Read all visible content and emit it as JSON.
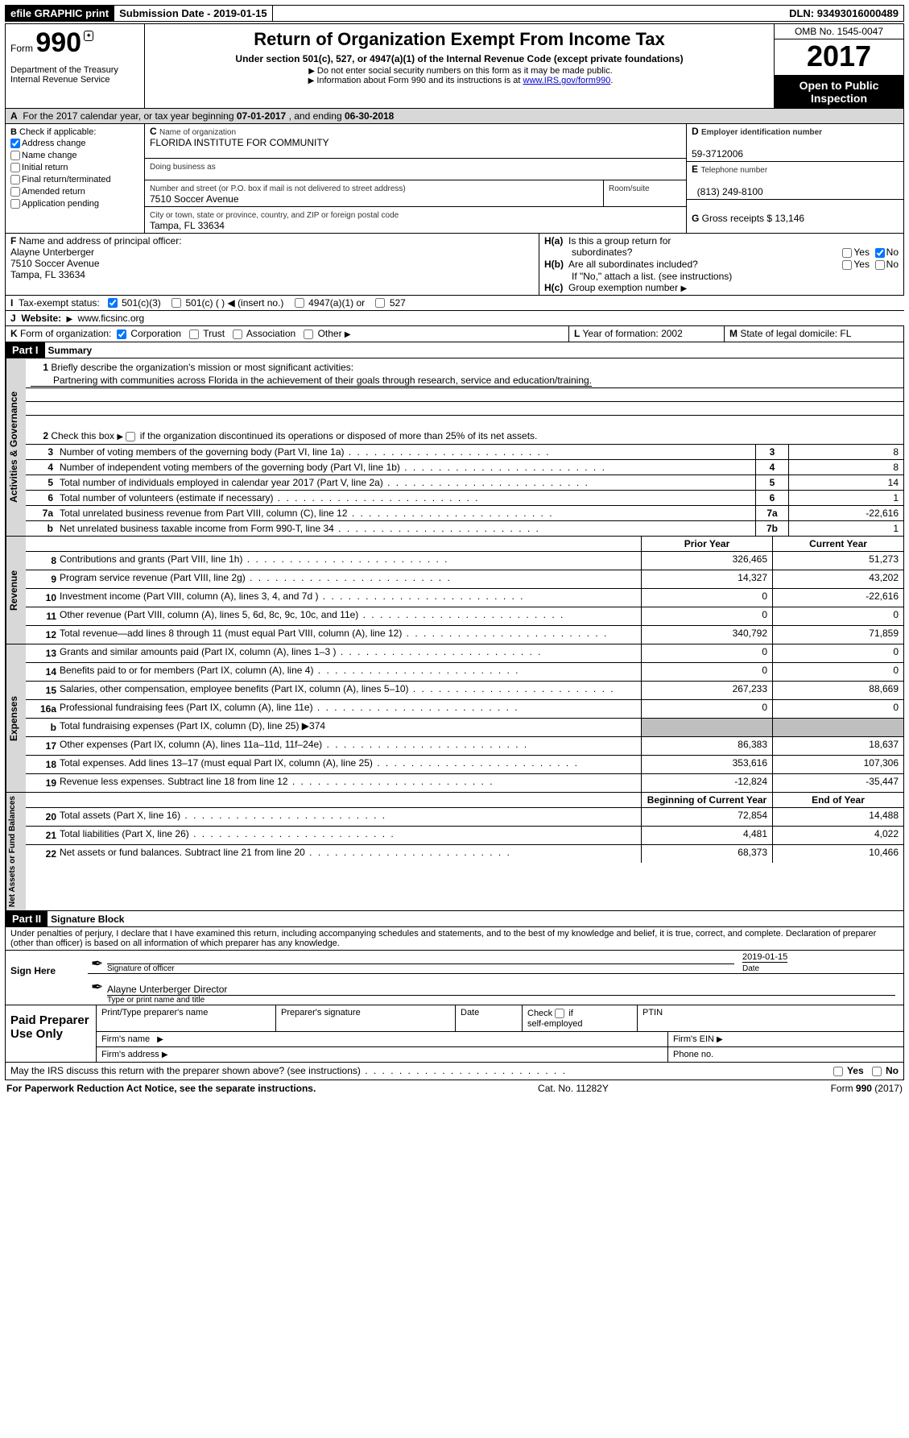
{
  "topbar": {
    "efile": "efile GRAPHIC print",
    "submission_label": "Submission Date - ",
    "submission_date": "2019-01-15",
    "dln_label": "DLN: ",
    "dln": "93493016000489"
  },
  "header": {
    "form_word": "Form",
    "form_number": "990",
    "dept1": "Department of the Treasury",
    "dept2": "Internal Revenue Service",
    "title": "Return of Organization Exempt From Income Tax",
    "sub": "Under section 501(c), 527, or 4947(a)(1) of the Internal Revenue Code (except private foundations)",
    "note1": "Do not enter social security numbers on this form as it may be made public.",
    "note2_pre": "Information about Form 990 and its instructions is at ",
    "note2_link": "www.IRS.gov/form990",
    "omb": "OMB No. 1545-0047",
    "year": "2017",
    "open1": "Open to Public",
    "open2": "Inspection"
  },
  "A": {
    "text_pre": "For the 2017 calendar year, or tax year beginning ",
    "begin": "07-01-2017",
    "mid": " , and ending ",
    "end": "06-30-2018"
  },
  "B": {
    "label": "Check if applicable:",
    "items": [
      {
        "label": "Address change",
        "checked": true
      },
      {
        "label": "Name change",
        "checked": false
      },
      {
        "label": "Initial return",
        "checked": false
      },
      {
        "label": "Final return/terminated",
        "checked": false
      },
      {
        "label": "Amended return",
        "checked": false
      },
      {
        "label": "Application pending",
        "checked": false
      }
    ]
  },
  "C": {
    "name_label": "Name of organization",
    "name": "FLORIDA INSTITUTE FOR COMMUNITY",
    "dba_label": "Doing business as",
    "dba": "",
    "street_label": "Number and street (or P.O. box if mail is not delivered to street address)",
    "room_label": "Room/suite",
    "street": "7510 Soccer Avenue",
    "city_label": "City or town, state or province, country, and ZIP or foreign postal code",
    "city": "Tampa, FL  33634"
  },
  "D": {
    "label": "Employer identification number",
    "value": "59-3712006"
  },
  "E": {
    "label": "Telephone number",
    "value": "(813) 249-8100"
  },
  "G": {
    "label": "Gross receipts $ ",
    "value": "13,146"
  },
  "F": {
    "label": "Name and address of principal officer:",
    "name": "Alayne Unterberger",
    "street": "7510 Soccer Avenue",
    "city": "Tampa, FL  33634"
  },
  "H": {
    "a_label": "Is this a group return for",
    "a_label2": "subordinates?",
    "a_yes": "Yes",
    "a_no": "No",
    "a_checked": "no",
    "b_label": "Are all subordinates included?",
    "b_yes": "Yes",
    "b_no": "No",
    "b_note": "If \"No,\" attach a list. (see instructions)",
    "c_label": "Group exemption number"
  },
  "I": {
    "label": "Tax-exempt status:",
    "o1": "501(c)(3)",
    "o1_checked": true,
    "o2": "501(c) (  )",
    "o2_hint": "(insert no.)",
    "o3": "4947(a)(1) or",
    "o4": "527"
  },
  "J": {
    "label": "Website:",
    "value": "www.ficsinc.org"
  },
  "K": {
    "label": "Form of organization:",
    "o1": "Corporation",
    "o1_checked": true,
    "o2": "Trust",
    "o3": "Association",
    "o4": "Other"
  },
  "L": {
    "label": "Year of formation: ",
    "value": "2002"
  },
  "M": {
    "label": "State of legal domicile: ",
    "value": "FL"
  },
  "part1": {
    "bar": "Part I",
    "title": "Summary"
  },
  "vtabs": {
    "gov": "Activities & Governance",
    "rev": "Revenue",
    "exp": "Expenses",
    "net": "Net Assets or\nFund Balances"
  },
  "gov_lines": {
    "l1_label": "Briefly describe the organization's mission or most significant activities:",
    "mission": "Partnering with communities across Florida in the achievement of their goals through research, service and education/training.",
    "l2": "Check this box ▶  if the organization discontinued its operations or disposed of more than 25% of its net assets.",
    "rows": [
      {
        "n": "3",
        "d": "Number of voting members of the governing body (Part VI, line 1a)",
        "box": "3",
        "v": "8"
      },
      {
        "n": "4",
        "d": "Number of independent voting members of the governing body (Part VI, line 1b)",
        "box": "4",
        "v": "8"
      },
      {
        "n": "5",
        "d": "Total number of individuals employed in calendar year 2017 (Part V, line 2a)",
        "box": "5",
        "v": "14"
      },
      {
        "n": "6",
        "d": "Total number of volunteers (estimate if necessary)",
        "box": "6",
        "v": "1"
      },
      {
        "n": "7a",
        "d": "Total unrelated business revenue from Part VIII, column (C), line 12",
        "box": "7a",
        "v": "-22,616"
      },
      {
        "n": "b",
        "d": "Net unrelated business taxable income from Form 990-T, line 34",
        "box": "7b",
        "v": "1"
      }
    ]
  },
  "two_col_hdr": {
    "py": "Prior Year",
    "cy": "Current Year"
  },
  "rev_lines": [
    {
      "n": "8",
      "d": "Contributions and grants (Part VIII, line 1h)",
      "py": "326,465",
      "cy": "51,273"
    },
    {
      "n": "9",
      "d": "Program service revenue (Part VIII, line 2g)",
      "py": "14,327",
      "cy": "43,202"
    },
    {
      "n": "10",
      "d": "Investment income (Part VIII, column (A), lines 3, 4, and 7d )",
      "py": "0",
      "cy": "-22,616"
    },
    {
      "n": "11",
      "d": "Other revenue (Part VIII, column (A), lines 5, 6d, 8c, 9c, 10c, and 11e)",
      "py": "0",
      "cy": "0"
    },
    {
      "n": "12",
      "d": "Total revenue—add lines 8 through 11 (must equal Part VIII, column (A), line 12)",
      "py": "340,792",
      "cy": "71,859"
    }
  ],
  "exp_lines": [
    {
      "n": "13",
      "d": "Grants and similar amounts paid (Part IX, column (A), lines 1–3 )",
      "py": "0",
      "cy": "0"
    },
    {
      "n": "14",
      "d": "Benefits paid to or for members (Part IX, column (A), line 4)",
      "py": "0",
      "cy": "0"
    },
    {
      "n": "15",
      "d": "Salaries, other compensation, employee benefits (Part IX, column (A), lines 5–10)",
      "py": "267,233",
      "cy": "88,669"
    },
    {
      "n": "16a",
      "d": "Professional fundraising fees (Part IX, column (A), line 11e)",
      "py": "0",
      "cy": "0"
    },
    {
      "n": "b",
      "d": "Total fundraising expenses (Part IX, column (D), line 25) ▶374",
      "py": "__shade__",
      "cy": "__shade__"
    },
    {
      "n": "17",
      "d": "Other expenses (Part IX, column (A), lines 11a–11d, 11f–24e)",
      "py": "86,383",
      "cy": "18,637"
    },
    {
      "n": "18",
      "d": "Total expenses. Add lines 13–17 (must equal Part IX, column (A), line 25)",
      "py": "353,616",
      "cy": "107,306"
    },
    {
      "n": "19",
      "d": "Revenue less expenses. Subtract line 18 from line 12",
      "py": "-12,824",
      "cy": "-35,447"
    }
  ],
  "net_hdr": {
    "py": "Beginning of Current Year",
    "cy": "End of Year"
  },
  "net_lines": [
    {
      "n": "20",
      "d": "Total assets (Part X, line 16)",
      "py": "72,854",
      "cy": "14,488"
    },
    {
      "n": "21",
      "d": "Total liabilities (Part X, line 26)",
      "py": "4,481",
      "cy": "4,022"
    },
    {
      "n": "22",
      "d": "Net assets or fund balances. Subtract line 21 from line 20",
      "py": "68,373",
      "cy": "10,466"
    }
  ],
  "part2": {
    "bar": "Part II",
    "title": "Signature Block"
  },
  "sig": {
    "penalty": "Under penalties of perjury, I declare that I have examined this return, including accompanying schedules and statements, and to the best of my knowledge and belief, it is true, correct, and complete. Declaration of preparer (other than officer) is based on all information of which preparer has any knowledge.",
    "sign_here": "Sign Here",
    "date": "2019-01-15",
    "sig_of_officer": "Signature of officer",
    "date_label": "Date",
    "name_title": "Alayne Unterberger Director",
    "type_label": "Type or print name and title"
  },
  "paid": {
    "title": "Paid Preparer Use Only",
    "h_name": "Print/Type preparer's name",
    "h_sig": "Preparer's signature",
    "h_date": "Date",
    "h_check": "Check",
    "h_if": "if",
    "h_self": "self-employed",
    "h_ptin": "PTIN",
    "firm_name": "Firm's name",
    "firm_ein": "Firm's EIN",
    "firm_addr": "Firm's address",
    "phone": "Phone no."
  },
  "discuss": {
    "text": "May the IRS discuss this return with the preparer shown above? (see instructions)",
    "yes": "Yes",
    "no": "No"
  },
  "footer": {
    "left": "For Paperwork Reduction Act Notice, see the separate instructions.",
    "mid": "Cat. No. 11282Y",
    "right_pre": "Form ",
    "right_form": "990",
    "right_post": " (2017)"
  }
}
